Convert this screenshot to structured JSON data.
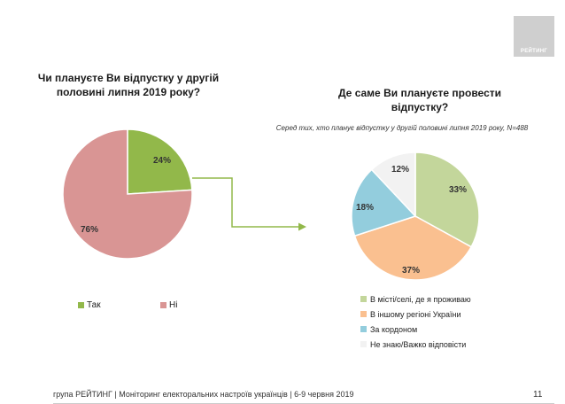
{
  "logo": {
    "text": "РЕЙТИНГ"
  },
  "chart_data": [
    {
      "type": "pie",
      "title": "Чи плануєте Ви відпустку у другій половині липня 2019 року?",
      "title_lines": [
        "Чи плануєте Ви відпустку у другій",
        "половині липня 2019 року?"
      ],
      "categories": [
        "Так",
        "Ні"
      ],
      "values": [
        24,
        76
      ],
      "labels": [
        "24%",
        "76%"
      ],
      "colors": [
        "#92b84a",
        "#d99594"
      ],
      "legend": "bottom"
    },
    {
      "type": "pie",
      "title": "Де саме Ви плануєте провести відпустку?",
      "title_lines": [
        "Де саме Ви плануєте провести",
        "відпустку?"
      ],
      "subtitle": "Серед тих, хто планує відпустку у другій половині липня 2019 року, N=488",
      "categories": [
        "В місті/селі, де я проживаю",
        "В іншому регіоні України",
        "За кордоном",
        "Не знаю/Важко відповісти"
      ],
      "values": [
        33,
        37,
        18,
        12
      ],
      "labels": [
        "33%",
        "37%",
        "18%",
        "12%"
      ],
      "colors": [
        "#c3d69b",
        "#fac090",
        "#93cddd",
        "#f2f2f2"
      ],
      "legend": "bottom-right"
    }
  ],
  "footer": {
    "text": "група РЕЙТИНГ | Моніторинг електоральних настроїв українців  | 6-9 червня 2019",
    "page": "11"
  }
}
